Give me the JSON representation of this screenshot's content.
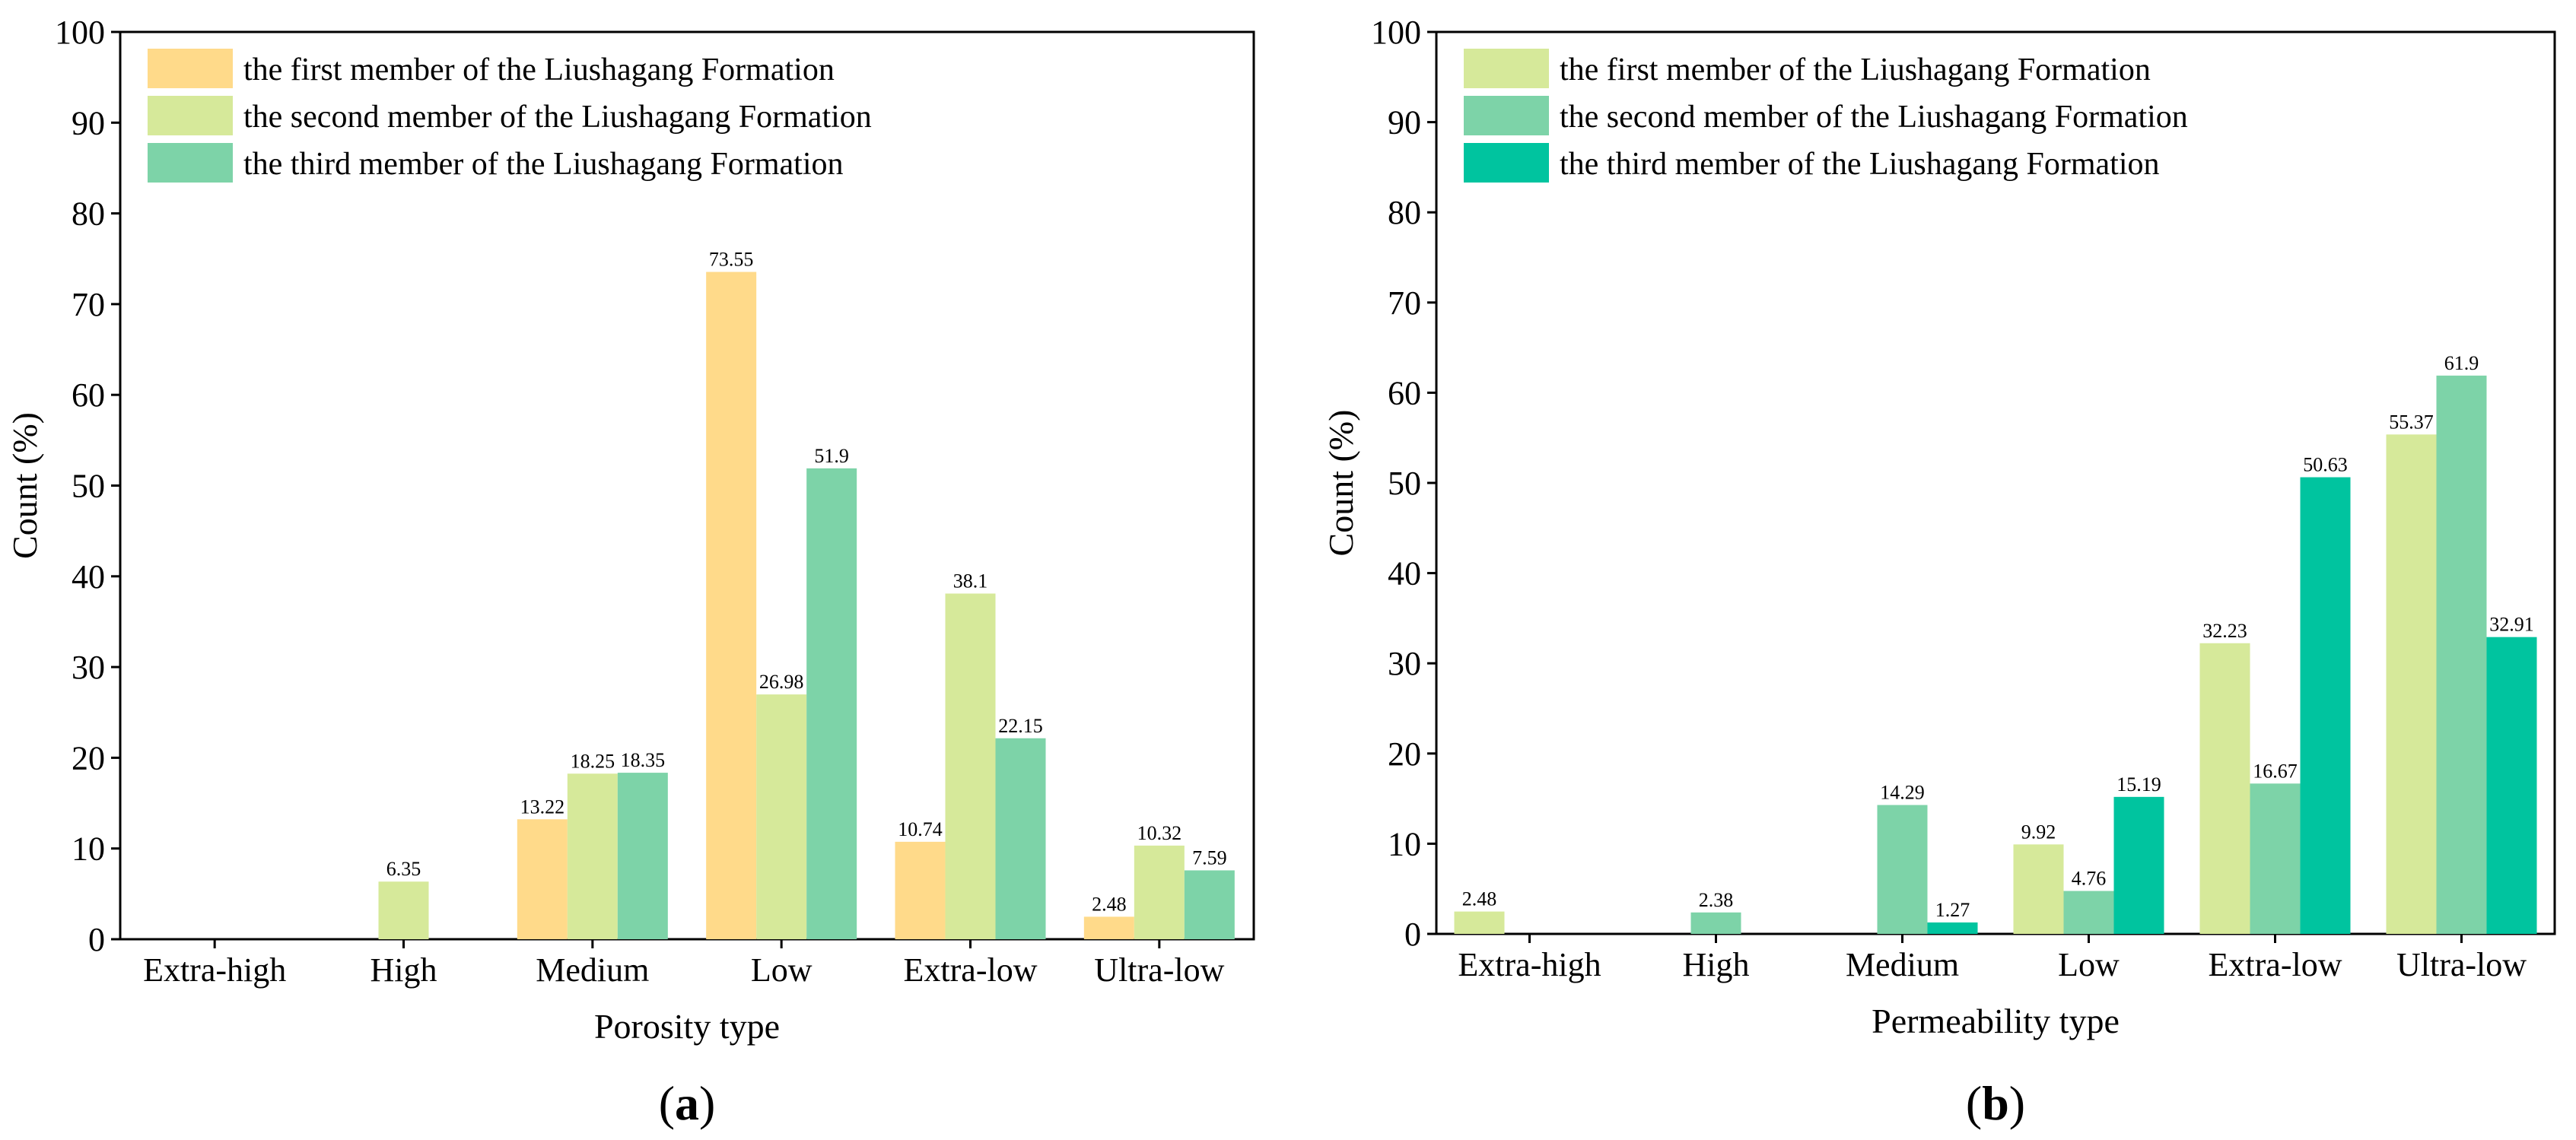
{
  "chart_data": [
    {
      "type": "bar",
      "panel_label": "a",
      "categories": [
        "Extra-high",
        "High",
        "Medium",
        "Low",
        "Extra-low",
        "Ultra-low"
      ],
      "series": [
        {
          "name": "the first member of the Liushagang Formation",
          "color": "#FFDA8A",
          "values": [
            null,
            null,
            13.22,
            73.55,
            10.74,
            2.48
          ],
          "labels": [
            "",
            "",
            "13.22",
            "73.55",
            "10.74",
            "2.48"
          ]
        },
        {
          "name": "the second member of the Liushagang Formation",
          "color": "#D6E99A",
          "values": [
            null,
            6.35,
            18.25,
            26.98,
            38.1,
            10.32
          ],
          "labels": [
            "",
            "6.35",
            "18.25",
            "26.98",
            "38.1",
            "10.32"
          ]
        },
        {
          "name": "the third member of the Liushagang Formation",
          "color": "#7DD3A8",
          "values": [
            null,
            null,
            18.35,
            51.9,
            22.15,
            7.59
          ],
          "labels": [
            "",
            "",
            "18.35",
            "51.9",
            "22.15",
            "7.59"
          ]
        }
      ],
      "title": "",
      "xlabel": "Porosity type",
      "ylabel": "Count (%)",
      "ylim": [
        0,
        100
      ],
      "yticks": [
        "0",
        "10",
        "20",
        "30",
        "40",
        "50",
        "60",
        "70",
        "80",
        "90",
        "100"
      ],
      "legend_position": "top-left"
    },
    {
      "type": "bar",
      "panel_label": "b",
      "categories": [
        "Extra-high",
        "High",
        "Medium",
        "Low",
        "Extra-low",
        "Ultra-low"
      ],
      "series": [
        {
          "name": "the first member of the Liushagang Formation",
          "color": "#D6E99A",
          "values": [
            2.48,
            null,
            null,
            9.92,
            32.23,
            55.37
          ],
          "labels": [
            "2.48",
            "",
            "",
            "9.92",
            "32.23",
            "55.37"
          ]
        },
        {
          "name": "the second member of the Liushagang Formation",
          "color": "#7DD3A8",
          "values": [
            null,
            2.38,
            14.29,
            4.76,
            16.67,
            61.9
          ],
          "labels": [
            "",
            "2.38",
            "14.29",
            "4.76",
            "16.67",
            "61.9"
          ]
        },
        {
          "name": "the third member of the Liushagang Formation",
          "color": "#00C49F",
          "values": [
            null,
            null,
            1.27,
            15.19,
            50.63,
            32.91
          ],
          "labels": [
            "",
            "",
            "1.27",
            "15.19",
            "50.63",
            "32.91"
          ]
        }
      ],
      "title": "",
      "xlabel": "Permeability type",
      "ylabel": "Count (%)",
      "ylim": [
        0,
        100
      ],
      "yticks": [
        "0",
        "10",
        "20",
        "30",
        "40",
        "50",
        "60",
        "70",
        "80",
        "90",
        "100"
      ],
      "legend_position": "top-left"
    }
  ]
}
